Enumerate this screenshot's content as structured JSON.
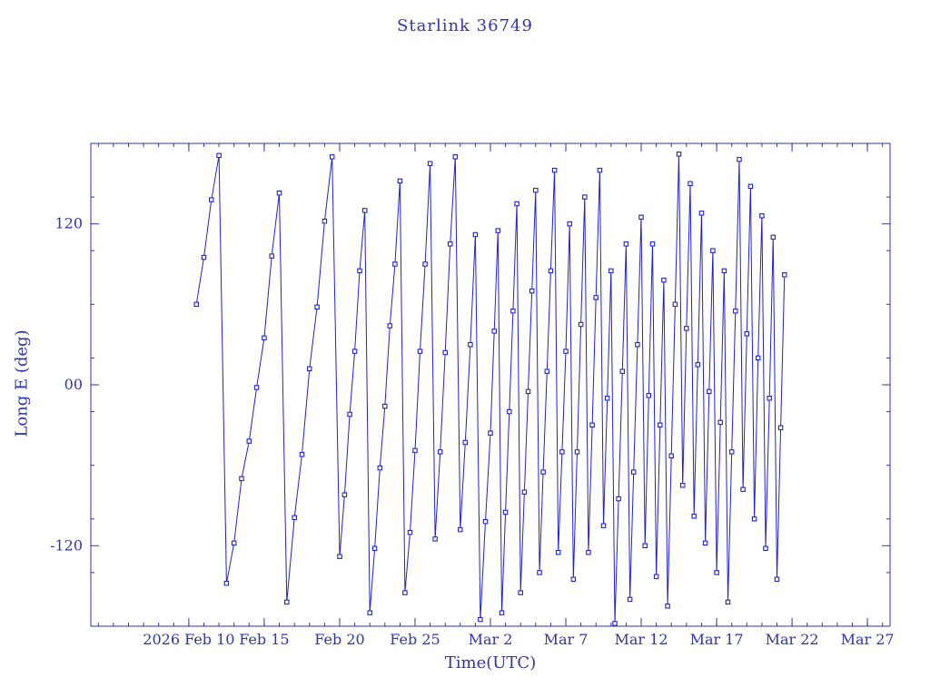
{
  "title": "Starlink 36749",
  "colors": {
    "axis": "#3333aa",
    "data": "#2222cc",
    "background": "#ffffff"
  },
  "chart_data": {
    "type": "line",
    "title": "Starlink 36749",
    "xlabel": "Time(UTC)",
    "ylabel": "Long E (deg)",
    "x_unit": "days since 2026 Feb 10",
    "xlim": [
      -6.5,
      46.5
    ],
    "ylim": [
      -180,
      180
    ],
    "x_minor_step": 1,
    "y_minor_step": 40,
    "marker": "open-square",
    "legend": "none",
    "grid": "off",
    "x_ticks": [
      {
        "t": 0,
        "label": "2026 Feb 10"
      },
      {
        "t": 5,
        "label": "Feb 15"
      },
      {
        "t": 10,
        "label": "Feb 20"
      },
      {
        "t": 15,
        "label": "Feb 25"
      },
      {
        "t": 20,
        "label": "Mar 2"
      },
      {
        "t": 25,
        "label": "Mar 7"
      },
      {
        "t": 30,
        "label": "Mar 12"
      },
      {
        "t": 35,
        "label": "Mar 17"
      },
      {
        "t": 40,
        "label": "Mar 22"
      },
      {
        "t": 45,
        "label": "Mar 27"
      }
    ],
    "y_ticks": [
      {
        "v": 120,
        "label": "120"
      },
      {
        "v": 0,
        "label": "00"
      },
      {
        "v": -120,
        "label": "-120"
      }
    ],
    "points": [
      [
        0.5,
        60
      ],
      [
        1.0,
        95
      ],
      [
        1.5,
        138
      ],
      [
        2.0,
        171
      ],
      [
        2.5,
        -148
      ],
      [
        3.0,
        -118
      ],
      [
        3.5,
        -70
      ],
      [
        4.0,
        -42
      ],
      [
        4.5,
        -2
      ],
      [
        5.0,
        35
      ],
      [
        5.5,
        96
      ],
      [
        6.0,
        143
      ],
      [
        6.5,
        -162
      ],
      [
        7.0,
        -99
      ],
      [
        7.5,
        -52
      ],
      [
        8.0,
        12
      ],
      [
        8.5,
        58
      ],
      [
        9.0,
        122
      ],
      [
        9.5,
        170
      ],
      [
        10.0,
        -128
      ],
      [
        10.33,
        -82
      ],
      [
        10.67,
        -22
      ],
      [
        11.0,
        25
      ],
      [
        11.33,
        85
      ],
      [
        11.67,
        130
      ],
      [
        12.0,
        -170
      ],
      [
        12.33,
        -122
      ],
      [
        12.67,
        -62
      ],
      [
        13.0,
        -16
      ],
      [
        13.33,
        44
      ],
      [
        13.67,
        90
      ],
      [
        14.0,
        152
      ],
      [
        14.33,
        -155
      ],
      [
        14.67,
        -110
      ],
      [
        15.0,
        -49
      ],
      [
        15.33,
        25
      ],
      [
        15.67,
        90
      ],
      [
        16.0,
        165
      ],
      [
        16.33,
        -115
      ],
      [
        16.67,
        -50
      ],
      [
        17.0,
        24
      ],
      [
        17.33,
        105
      ],
      [
        17.67,
        170
      ],
      [
        18.0,
        -108
      ],
      [
        18.33,
        -43
      ],
      [
        18.67,
        30
      ],
      [
        19.0,
        112
      ],
      [
        19.33,
        -175
      ],
      [
        19.67,
        -102
      ],
      [
        20.0,
        -36
      ],
      [
        20.25,
        40
      ],
      [
        20.5,
        115
      ],
      [
        20.75,
        -170
      ],
      [
        21.0,
        -95
      ],
      [
        21.25,
        -20
      ],
      [
        21.5,
        55
      ],
      [
        21.75,
        135
      ],
      [
        22.0,
        -155
      ],
      [
        22.25,
        -80
      ],
      [
        22.5,
        -5
      ],
      [
        22.75,
        70
      ],
      [
        23.0,
        145
      ],
      [
        23.25,
        -140
      ],
      [
        23.5,
        -65
      ],
      [
        23.75,
        10
      ],
      [
        24.0,
        85
      ],
      [
        24.25,
        160
      ],
      [
        24.5,
        -125
      ],
      [
        24.75,
        -50
      ],
      [
        25.0,
        25
      ],
      [
        25.25,
        120
      ],
      [
        25.5,
        -145
      ],
      [
        25.75,
        -50
      ],
      [
        26.0,
        45
      ],
      [
        26.25,
        140
      ],
      [
        26.5,
        -125
      ],
      [
        26.75,
        -30
      ],
      [
        27.0,
        65
      ],
      [
        27.25,
        160
      ],
      [
        27.5,
        -105
      ],
      [
        27.75,
        -10
      ],
      [
        28.0,
        85
      ],
      [
        28.25,
        -178
      ],
      [
        28.5,
        -85
      ],
      [
        28.75,
        10
      ],
      [
        29.0,
        105
      ],
      [
        29.25,
        -160
      ],
      [
        29.5,
        -65
      ],
      [
        29.75,
        30
      ],
      [
        30.0,
        125
      ],
      [
        30.25,
        -120
      ],
      [
        30.5,
        -8
      ],
      [
        30.75,
        105
      ],
      [
        31.0,
        -143
      ],
      [
        31.25,
        -30
      ],
      [
        31.5,
        78
      ],
      [
        31.75,
        -165
      ],
      [
        32.0,
        -53
      ],
      [
        32.25,
        60
      ],
      [
        32.5,
        172
      ],
      [
        32.75,
        -75
      ],
      [
        33.0,
        42
      ],
      [
        33.25,
        150
      ],
      [
        33.5,
        -98
      ],
      [
        33.75,
        15
      ],
      [
        34.0,
        128
      ],
      [
        34.25,
        -118
      ],
      [
        34.5,
        -5
      ],
      [
        34.75,
        100
      ],
      [
        35.0,
        -140
      ],
      [
        35.25,
        -28
      ],
      [
        35.5,
        85
      ],
      [
        35.75,
        -162
      ],
      [
        36.0,
        -50
      ],
      [
        36.25,
        55
      ],
      [
        36.5,
        168
      ],
      [
        36.75,
        -78
      ],
      [
        37.0,
        38
      ],
      [
        37.25,
        148
      ],
      [
        37.5,
        -100
      ],
      [
        37.75,
        20
      ],
      [
        38.0,
        126
      ],
      [
        38.25,
        -122
      ],
      [
        38.5,
        -10
      ],
      [
        38.75,
        110
      ],
      [
        39.0,
        -145
      ],
      [
        39.25,
        -32
      ],
      [
        39.5,
        82
      ]
    ]
  }
}
